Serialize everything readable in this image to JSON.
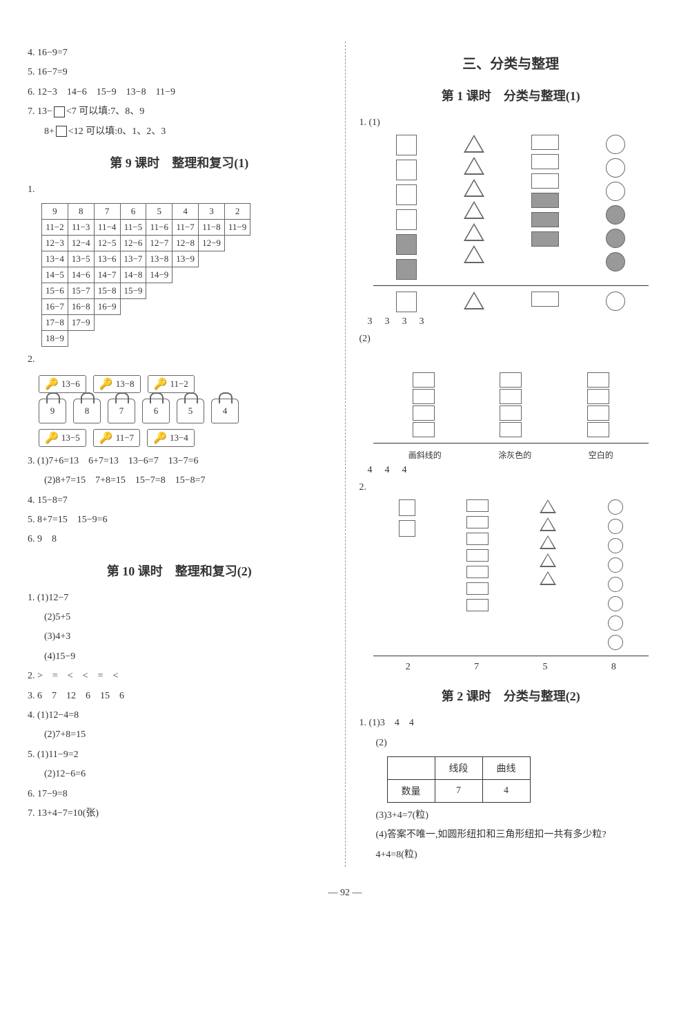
{
  "leftCol": {
    "q4": "4. 16−9=7",
    "q5": "5. 16−7=9",
    "q6": "6. 12−3　14−6　15−9　13−8　11−9",
    "q7a": "7. 13−",
    "q7a2": "<7 可以填:7、8、9",
    "q7b": "8+",
    "q7b2": "<12 可以填:0、1、2、3",
    "lesson9": {
      "title": "第 9 课时　整理和复习(1)"
    },
    "table1": {
      "headers": [
        "9",
        "8",
        "7",
        "6",
        "5",
        "4",
        "3",
        "2"
      ],
      "rows": [
        [
          "11−2",
          "11−3",
          "11−4",
          "11−5",
          "11−6",
          "11−7",
          "11−8",
          "11−9"
        ],
        [
          "12−3",
          "12−4",
          "12−5",
          "12−6",
          "12−7",
          "12−8",
          "12−9",
          ""
        ],
        [
          "13−4",
          "13−5",
          "13−6",
          "13−7",
          "13−8",
          "13−9",
          "",
          ""
        ],
        [
          "14−5",
          "14−6",
          "14−7",
          "14−8",
          "14−9",
          "",
          "",
          ""
        ],
        [
          "15−6",
          "15−7",
          "15−8",
          "15−9",
          "",
          "",
          "",
          ""
        ],
        [
          "16−7",
          "16−8",
          "16−9",
          "",
          "",
          "",
          "",
          ""
        ],
        [
          "17−8",
          "17−9",
          "",
          "",
          "",
          "",
          "",
          ""
        ],
        [
          "18−9",
          "",
          "",
          "",
          "",
          "",
          "",
          ""
        ]
      ]
    },
    "keys1": [
      "13−6",
      "13−8",
      "11−2"
    ],
    "locks": [
      "9",
      "8",
      "7",
      "6",
      "5",
      "4"
    ],
    "keys2": [
      "13−5",
      "11−7",
      "13−4"
    ],
    "q3a": "3. (1)7+6=13　6+7=13　13−6=7　13−7=6",
    "q3b": "(2)8+7=15　7+8=15　15−7=8　15−8=7",
    "q4b": "4. 15−8=7",
    "q5b": "5. 8+7=15　15−9=6",
    "q6b": "6. 9　8",
    "lesson10": {
      "title": "第 10 课时　整理和复习(2)"
    },
    "l10": {
      "q1a": "1. (1)12−7",
      "q1b": "(2)5+5",
      "q1c": "(3)4+3",
      "q1d": "(4)15−9",
      "q2": "2. >　=　<　<　=　<",
      "q3": "3. 6　7　12　6　15　6",
      "q4a": "4. (1)12−4=8",
      "q4b": "(2)7+8=15",
      "q5a": "5. (1)11−9=2",
      "q5b": "(2)12−6=6",
      "q6": "6. 17−9=8",
      "q7": "7. 13+4−7=10(张)"
    }
  },
  "rightCol": {
    "chapter": "三、分类与整理",
    "lesson1": {
      "title": "第 1 课时　分类与整理(1)"
    },
    "q1label": "1. (1)",
    "shapes1_counts": [
      "3",
      "3",
      "3",
      "3"
    ],
    "q1_2": "(2)",
    "bars": {
      "labels": [
        "画斜线的",
        "涂灰色的",
        "空白的"
      ],
      "counts": [
        "4",
        "4",
        "4"
      ]
    },
    "q2label": "2.",
    "shapes2_counts": [
      "2",
      "7",
      "5",
      "8"
    ],
    "lesson2": {
      "title": "第 2 课时　分类与整理(2)"
    },
    "l2": {
      "q1a": "1. (1)3　4　4",
      "q1b": "(2)",
      "table": {
        "headers": [
          "",
          "线段",
          "曲线"
        ],
        "row": [
          "数量",
          "7",
          "4"
        ]
      },
      "q3": "(3)3+4=7(粒)",
      "q4a": "(4)答案不唯一,如圆形纽扣和三角形纽扣一共有多少粒?",
      "q4b": "4+4=8(粒)"
    }
  },
  "pageNum": "92"
}
